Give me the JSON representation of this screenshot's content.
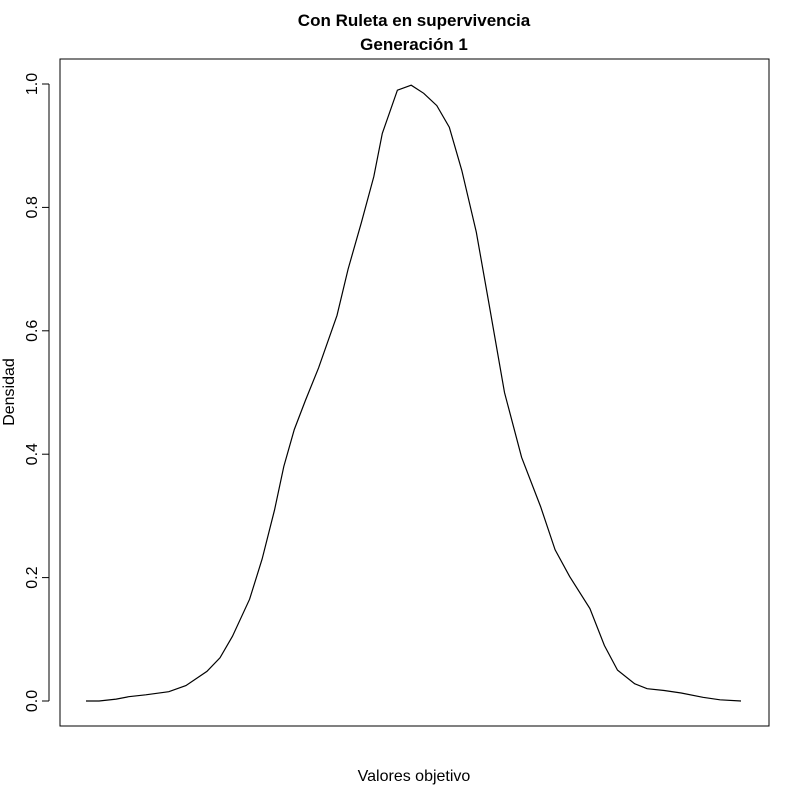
{
  "chart_data": {
    "type": "line",
    "title": "Con Ruleta en supervivencia",
    "subtitle": "Generación 1",
    "xlabel": "Valores objetivo",
    "ylabel": "Densidad",
    "ylim": [
      0.0,
      1.0
    ],
    "xlim": [
      0,
      1
    ],
    "y_ticks": [
      0.0,
      0.2,
      0.4,
      0.6,
      0.8,
      1.0
    ],
    "y_tick_labels": [
      "0.0",
      "0.2",
      "0.4",
      "0.6",
      "0.8",
      "1.0"
    ],
    "x_ticks": [],
    "grid": false,
    "legend": "none",
    "line_color": "#000000",
    "series": [
      {
        "x": [
          0.0,
          0.02,
          0.046,
          0.065,
          0.091,
          0.126,
          0.152,
          0.184,
          0.204,
          0.223,
          0.249,
          0.268,
          0.287,
          0.301,
          0.317,
          0.334,
          0.354,
          0.382,
          0.399,
          0.419,
          0.438,
          0.451,
          0.474,
          0.495,
          0.514,
          0.534,
          0.553,
          0.572,
          0.594,
          0.614,
          0.637,
          0.663,
          0.692,
          0.714,
          0.736,
          0.767,
          0.789,
          0.809,
          0.835,
          0.854,
          0.88,
          0.906,
          0.939,
          0.965,
          0.997
        ],
        "y": [
          0.0,
          0.0,
          0.003,
          0.007,
          0.01,
          0.015,
          0.025,
          0.048,
          0.07,
          0.105,
          0.165,
          0.23,
          0.31,
          0.38,
          0.44,
          0.487,
          0.54,
          0.625,
          0.7,
          0.775,
          0.85,
          0.92,
          0.99,
          0.998,
          0.985,
          0.965,
          0.93,
          0.86,
          0.76,
          0.64,
          0.5,
          0.395,
          0.315,
          0.245,
          0.202,
          0.15,
          0.09,
          0.05,
          0.028,
          0.02,
          0.017,
          0.013,
          0.006,
          0.002,
          0.0
        ]
      }
    ]
  }
}
